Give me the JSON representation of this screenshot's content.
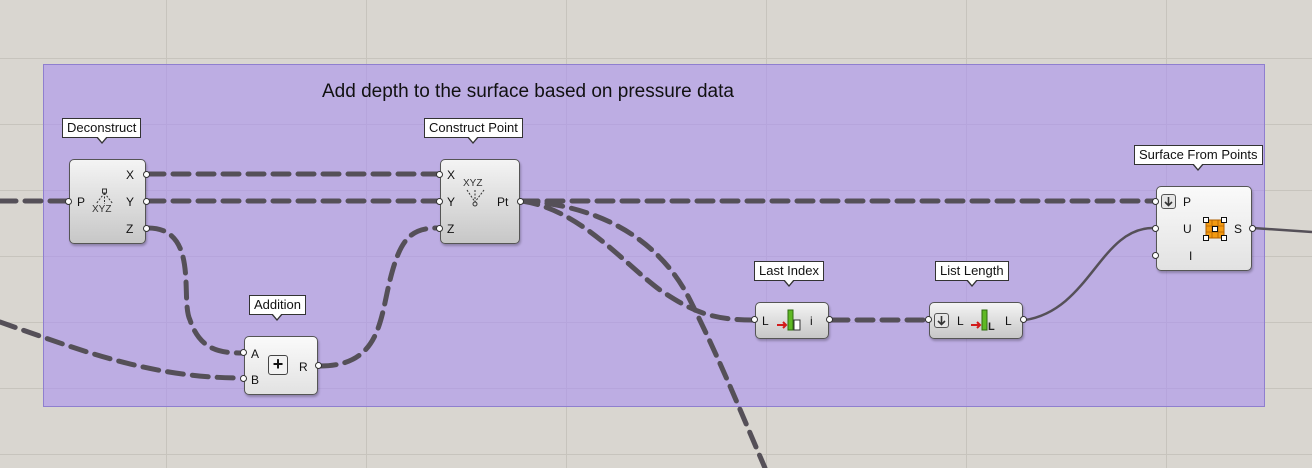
{
  "group": {
    "title": "Add depth to the surface based on pressure data"
  },
  "components": {
    "deconstruct": {
      "label": "Deconstruct",
      "input": "P",
      "outputs": [
        "X",
        "Y",
        "Z"
      ],
      "icon_text": "XYZ"
    },
    "construct_point": {
      "label": "Construct Point",
      "inputs": [
        "X",
        "Y",
        "Z"
      ],
      "output": "Pt",
      "icon_text": "XYZ"
    },
    "addition": {
      "label": "Addition",
      "inputs": [
        "A",
        "B"
      ],
      "output": "R",
      "icon": "plus-icon"
    },
    "last_index": {
      "label": "Last Index",
      "input": "L",
      "output": "i"
    },
    "list_length": {
      "label": "List Length",
      "input": "L",
      "output": "L"
    },
    "surface_from_points": {
      "label": "Surface From Points",
      "inputs": [
        "P",
        "U",
        "I"
      ],
      "output": "S"
    }
  },
  "colors": {
    "wire": "#555058",
    "group_fill": "#b49cf0",
    "surface_icon": "#f39a12"
  }
}
